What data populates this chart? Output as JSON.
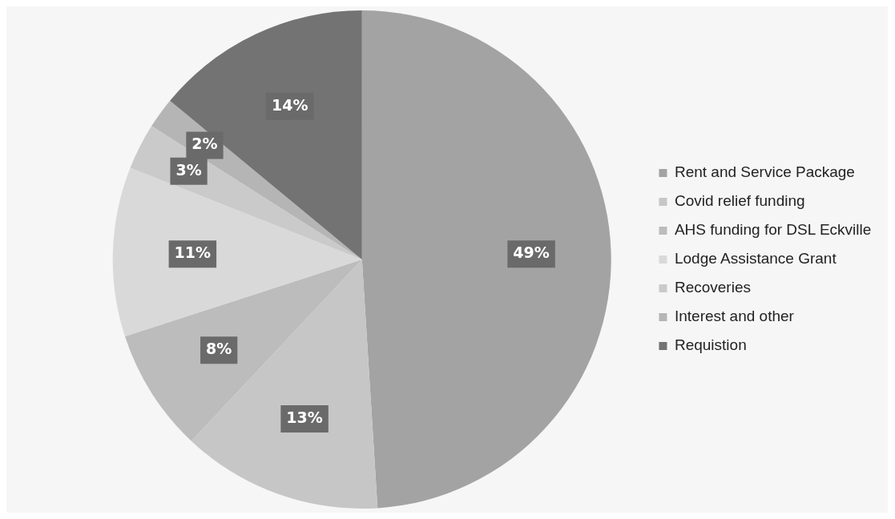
{
  "chart_data": {
    "type": "pie",
    "categories": [
      "Rent and Service Package",
      "Covid relief funding",
      "AHS funding for DSL Eckville",
      "Lodge Assistance Grant",
      "Recoveries",
      "Interest and other",
      "Requistion"
    ],
    "values": [
      49,
      13,
      8,
      11,
      3,
      2,
      14
    ],
    "colors": [
      "#a3a3a3",
      "#c6c6c6",
      "#bcbcbc",
      "#d9d9d9",
      "#cacaca",
      "#b5b5b5",
      "#737373"
    ],
    "value_labels": [
      "49%",
      "13%",
      "8%",
      "11%",
      "3%",
      "2%",
      "14%"
    ],
    "legend": "right"
  }
}
